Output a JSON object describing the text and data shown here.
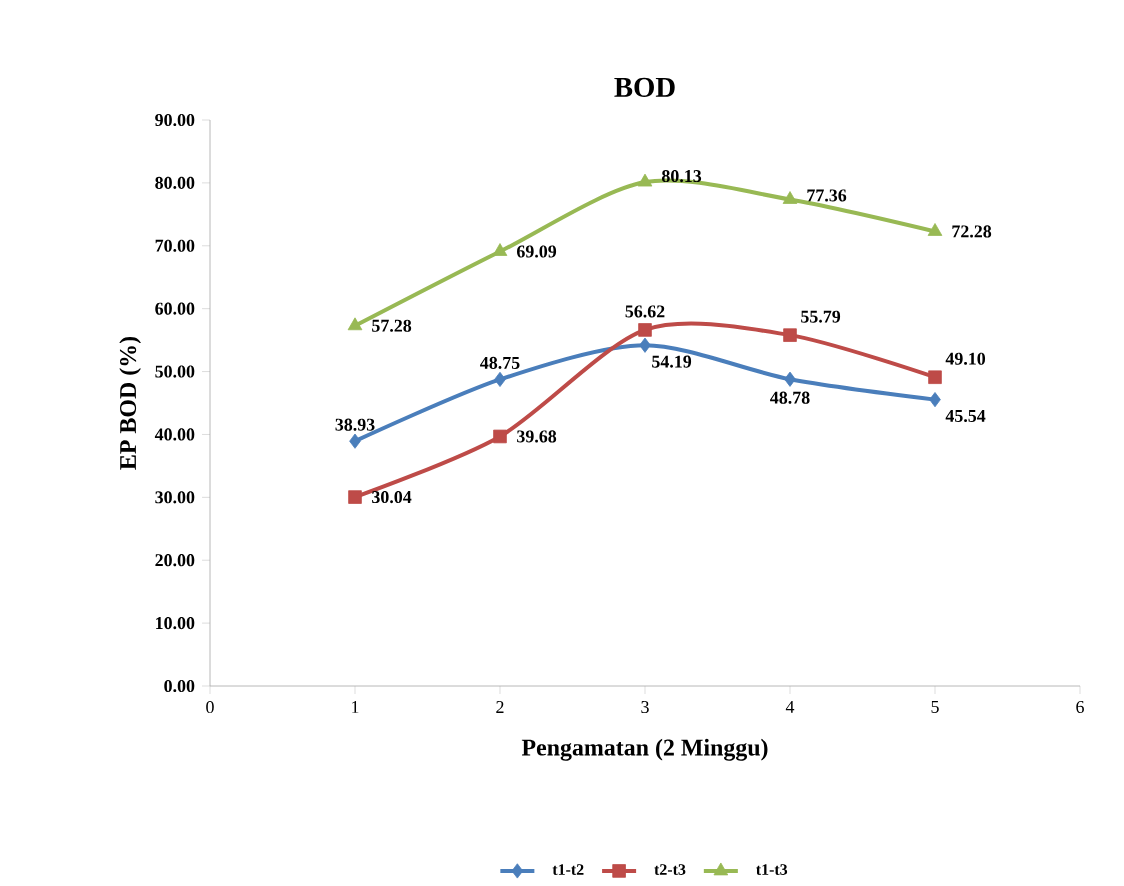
{
  "chart_data": {
    "type": "line",
    "title": "BOD",
    "xlabel": "Pengamatan (2 Minggu)",
    "ylabel": "EP BOD (%)",
    "x": [
      1,
      2,
      3,
      4,
      5
    ],
    "xlim": [
      0,
      6
    ],
    "xticks": [
      0,
      1,
      2,
      3,
      4,
      5,
      6
    ],
    "ylim": [
      0,
      90
    ],
    "yticks": [
      {
        "value": 0,
        "label": "0.00"
      },
      {
        "value": 10,
        "label": "10.00"
      },
      {
        "value": 20,
        "label": "20.00"
      },
      {
        "value": 30,
        "label": "30.00"
      },
      {
        "value": 40,
        "label": "40.00"
      },
      {
        "value": 50,
        "label": "50.00"
      },
      {
        "value": 60,
        "label": "60.00"
      },
      {
        "value": 70,
        "label": "70.00"
      },
      {
        "value": 80,
        "label": "80.00"
      },
      {
        "value": 90,
        "label": "90.00"
      }
    ],
    "legend": "bottom",
    "line_style": "solid",
    "series": [
      {
        "name": "t1-t2",
        "color": "#4a7ebb",
        "marker": "diamond",
        "values": [
          38.93,
          48.75,
          54.19,
          48.78,
          45.54
        ],
        "value_labels": [
          "38.93",
          "48.75",
          "54.19",
          "48.78",
          "45.54"
        ]
      },
      {
        "name": "t2-t3",
        "color": "#be4b48",
        "marker": "square",
        "values": [
          30.04,
          39.68,
          56.62,
          55.79,
          49.1
        ],
        "value_labels": [
          "30.04",
          "39.68",
          "56.62",
          "55.79",
          "49.10"
        ]
      },
      {
        "name": "t1-t3",
        "color": "#98b954",
        "marker": "triangle",
        "values": [
          57.28,
          69.09,
          80.13,
          77.36,
          72.28
        ],
        "value_labels": [
          "57.28",
          "69.09",
          "80.13",
          "77.36",
          "72.28"
        ]
      }
    ]
  }
}
